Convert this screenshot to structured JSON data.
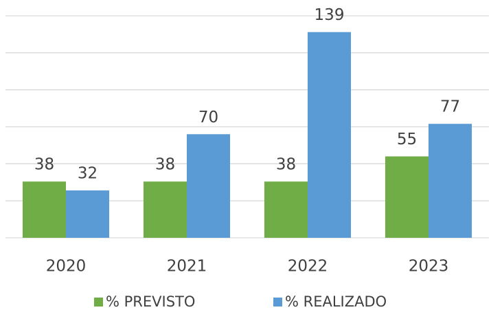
{
  "chart_data": {
    "type": "bar",
    "categories": [
      "2020",
      "2021",
      "2022",
      "2023"
    ],
    "series": [
      {
        "name": "% PREVISTO",
        "color": "#70ad47",
        "values": [
          38,
          38,
          38,
          55
        ]
      },
      {
        "name": "% REALIZADO",
        "color": "#5b9bd5",
        "values": [
          32,
          70,
          139,
          77
        ]
      }
    ],
    "ylim": [
      0,
      150
    ],
    "yticks": [
      0,
      25,
      50,
      75,
      100,
      125,
      150
    ],
    "grid": true
  }
}
